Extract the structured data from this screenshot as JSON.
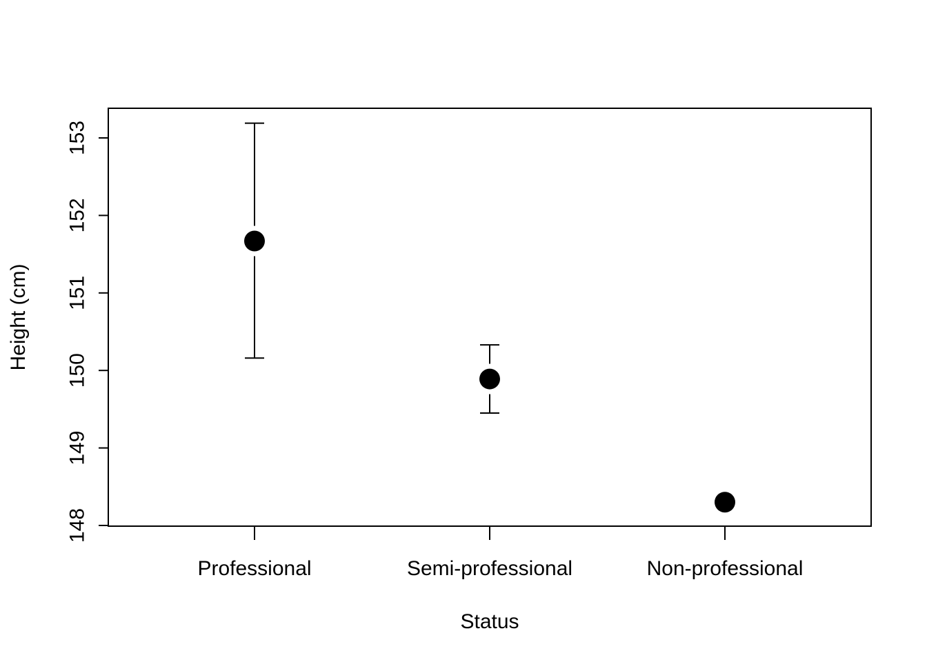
{
  "chart_data": {
    "type": "scatter",
    "title": "",
    "xlabel": "Status",
    "ylabel": "Height (cm)",
    "categories": [
      "Professional",
      "Semi-professional",
      "Non-professional"
    ],
    "values": [
      151.67,
      149.89,
      148.3
    ],
    "error_lower": [
      150.16,
      149.45,
      148.3
    ],
    "error_upper": [
      153.19,
      150.33,
      148.3
    ],
    "ylim": [
      148,
      153
    ],
    "y_ticks": [
      148,
      149,
      150,
      151,
      152,
      153
    ],
    "grid": false,
    "legend": "none",
    "colors": {
      "point": "#000000",
      "line": "#000000"
    }
  }
}
